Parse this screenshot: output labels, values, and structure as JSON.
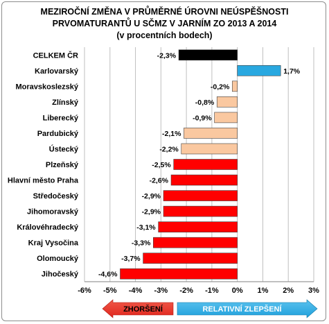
{
  "title": {
    "line1": "MEZIROČNÍ ZMĚNA V PRŮMĚRNÉ ÚROVNI NEÚSPĚŠNOSTI",
    "line2": "PRVOMATURANTŮ U SČMZ V JARNÍM ZO 2013 A 2014",
    "line3": "(v procentních bodech)"
  },
  "legend": {
    "worse": "ZHORŠENÍ",
    "better": "RELATIVNÍ ZLEPŠENÍ"
  },
  "colors": {
    "total": "#000000",
    "improvement": "#29a8e0",
    "light": "#fac8a0",
    "strong": "#ff0000",
    "worse_arrow": "#e0241c",
    "better_arrow": "#1ea0dc"
  },
  "chart_data": {
    "type": "bar",
    "orientation": "horizontal",
    "categories": [
      "CELKEM ČR",
      "Karlovarský",
      "Moravskoslezský",
      "Zlínský",
      "Liberecký",
      "Pardubický",
      "Ústecký",
      "Plzeňský",
      "Hlavní město Praha",
      "Středočeský",
      "Jihomoravský",
      "Královéhradecký",
      "Kraj Vysočina",
      "Olomoucký",
      "Jihočeský"
    ],
    "values": [
      -2.3,
      1.7,
      -0.2,
      -0.8,
      -0.9,
      -2.1,
      -2.2,
      -2.5,
      -2.6,
      -2.9,
      -2.9,
      -3.1,
      -3.3,
      -3.7,
      -4.6
    ],
    "value_labels": [
      "-2,3%",
      "1,7%",
      "-0,2%",
      "-0,8%",
      "-0,9%",
      "-2,1%",
      "-2,2%",
      "-2,5%",
      "-2,6%",
      "-2,9%",
      "-2,9%",
      "-3,1%",
      "-3,3%",
      "-3,7%",
      "-4,6%"
    ],
    "bar_colors": [
      "#000000",
      "#29a8e0",
      "#fac8a0",
      "#fac8a0",
      "#fac8a0",
      "#fac8a0",
      "#fac8a0",
      "#ff0000",
      "#ff0000",
      "#ff0000",
      "#ff0000",
      "#ff0000",
      "#ff0000",
      "#ff0000",
      "#ff0000"
    ],
    "x_ticks": [
      -6,
      -5,
      -4,
      -3,
      -2,
      -1,
      0,
      1,
      2,
      3
    ],
    "x_tick_labels": [
      "-6%",
      "-5%",
      "-4%",
      "-3%",
      "-2%",
      "-1%",
      "0%",
      "1%",
      "2%",
      "3%"
    ],
    "xlim": [
      -6,
      3
    ],
    "grid": true
  }
}
